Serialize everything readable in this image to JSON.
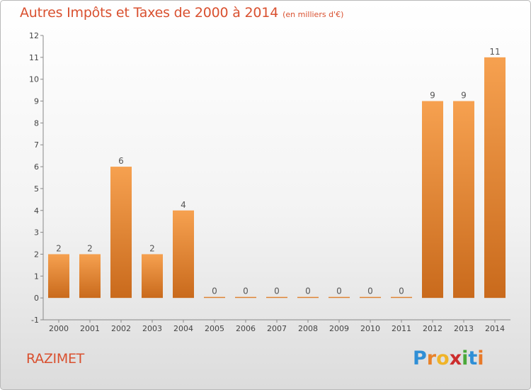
{
  "title": "Autres Impôts et Taxes de 2000 à 2014",
  "unit": "(en milliers d'€)",
  "commune": "RAZIMET",
  "logo": {
    "text": "Proxiti"
  },
  "chart_data": {
    "type": "bar",
    "categories": [
      "2000",
      "2001",
      "2002",
      "2003",
      "2004",
      "2005",
      "2006",
      "2007",
      "2008",
      "2009",
      "2010",
      "2011",
      "2012",
      "2013",
      "2014"
    ],
    "values": [
      2,
      2,
      6,
      2,
      4,
      0,
      0,
      0,
      0,
      0,
      0,
      0,
      9,
      9,
      11
    ],
    "data_labels": [
      "2",
      "2",
      "6",
      "2",
      "4",
      "0",
      "0",
      "0",
      "0",
      "0",
      "0",
      "0",
      "9",
      "9",
      "11"
    ],
    "ylim": [
      -1,
      12
    ],
    "yticks": [
      -1,
      0,
      1,
      2,
      3,
      4,
      5,
      6,
      7,
      8,
      9,
      10,
      11,
      12
    ],
    "ytick_labels": [
      "-1",
      "0",
      "1",
      "2",
      "3",
      "4",
      "5",
      "6",
      "7",
      "8",
      "9",
      "10",
      "11",
      "12"
    ],
    "grid": false,
    "bar_color_light": "#f6a150",
    "bar_color_dark": "#c96a1c"
  }
}
